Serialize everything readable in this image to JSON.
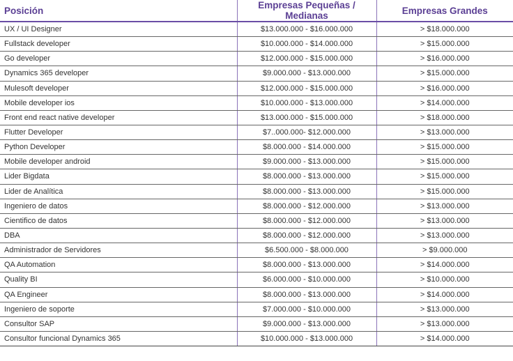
{
  "table": {
    "headers": {
      "position": "Posición",
      "small_medium": "Empresas Pequeñas / Medianas",
      "large": "Empresas Grandes"
    },
    "rows": [
      {
        "position": "UX / UI Designer",
        "small_medium": "$13.000.000 - $16.000.000",
        "large": "> $18.000.000"
      },
      {
        "position": "Fullstack developer",
        "small_medium": "$10.000.000 - $14.000.000",
        "large": "> $15.000.000"
      },
      {
        "position": "Go developer",
        "small_medium": "$12.000.000 - $15.000.000",
        "large": "> $16.000.000"
      },
      {
        "position": "Dynamics 365 developer",
        "small_medium": "$9.000.000 - $13.000.000",
        "large": "> $15.000.000"
      },
      {
        "position": "Mulesoft developer",
        "small_medium": "$12.000.000 - $15.000.000",
        "large": "> $16.000.000"
      },
      {
        "position": "Mobile developer ios",
        "small_medium": "$10.000.000 - $13.000.000",
        "large": "> $14.000.000"
      },
      {
        "position": "Front end react native developer",
        "small_medium": "$13.000.000 - $15.000.000",
        "large": "> $18.000.000"
      },
      {
        "position": "Flutter Developer",
        "small_medium": "$7..000.000- $12.000.000",
        "large": "> $13.000.000"
      },
      {
        "position": "Python Developer",
        "small_medium": "$8.000.000 - $14.000.000",
        "large": "> $15.000.000"
      },
      {
        "position": "Mobile developer android",
        "small_medium": "$9.000.000 - $13.000.000",
        "large": "> $15.000.000"
      },
      {
        "position": "Lider Bigdata",
        "small_medium": "$8.000.000 - $13.000.000",
        "large": "> $15.000.000"
      },
      {
        "position": "Lider de Analítica",
        "small_medium": "$8.000.000 - $13.000.000",
        "large": "> $15.000.000"
      },
      {
        "position": "Ingeniero de datos",
        "small_medium": "$8.000.000 - $12.000.000",
        "large": "> $13.000.000"
      },
      {
        "position": "Cientifico de datos",
        "small_medium": "$8.000.000 - $12.000.000",
        "large": "> $13.000.000"
      },
      {
        "position": "DBA",
        "small_medium": "$8.000.000 - $12.000.000",
        "large": "> $13.000.000"
      },
      {
        "position": "Administrador de Servidores",
        "small_medium": "$6.500.000 - $8.000.000",
        "large": "> $9.000.000"
      },
      {
        "position": "QA Automation",
        "small_medium": "$8.000.000 - $13.000.000",
        "large": "> $14.000.000"
      },
      {
        "position": "Quality BI",
        "small_medium": "$6.000.000 - $10.000.000",
        "large": "> $10.000.000"
      },
      {
        "position": "QA Engineer",
        "small_medium": "$8.000.000 - $13.000.000",
        "large": "> $14.000.000"
      },
      {
        "position": "Ingeniero de soporte",
        "small_medium": "$7.000.000 - $10.000.000",
        "large": "> $13.000.000"
      },
      {
        "position": "Consultor SAP",
        "small_medium": "$9.000.000 -  $13.000.000",
        "large": "> $13.000.000"
      },
      {
        "position": "Consultor funcional Dynamics 365",
        "small_medium": "$10.000.000 - $13.000.000",
        "large": "> $14.000.000"
      }
    ]
  },
  "colors": {
    "header_text": "#5b3f94",
    "header_rule": "#6a4ea5",
    "column_divider": "#8a72b8",
    "row_rule": "#666666",
    "body_text": "#333333"
  }
}
